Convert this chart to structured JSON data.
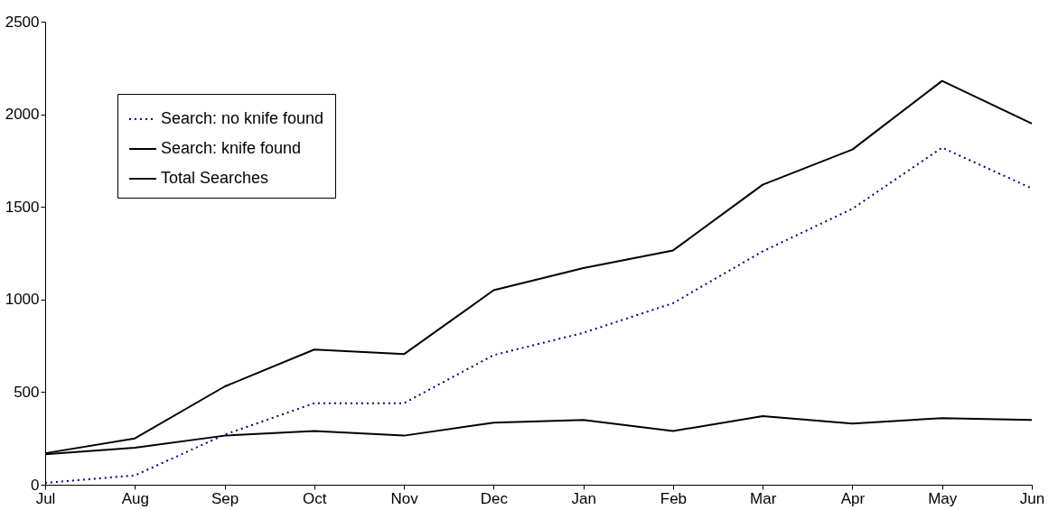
{
  "chart_data": {
    "type": "line",
    "categories": [
      "Jul",
      "Aug",
      "Sep",
      "Oct",
      "Nov",
      "Dec",
      "Jan",
      "Feb",
      "Mar",
      "Apr",
      "May",
      "Jun"
    ],
    "series": [
      {
        "name": "Search: no knife found",
        "color": "#000080",
        "line_style": "dotted",
        "values": [
          10,
          50,
          270,
          440,
          440,
          700,
          820,
          980,
          1260,
          1490,
          1820,
          1600
        ]
      },
      {
        "name": "Search: knife found",
        "color": "#000000",
        "line_style": "solid",
        "values": [
          165,
          200,
          265,
          290,
          265,
          335,
          350,
          290,
          370,
          330,
          360,
          350
        ]
      },
      {
        "name": "Total Searches",
        "color": "#000000",
        "line_style": "solid",
        "values": [
          170,
          250,
          530,
          730,
          705,
          1050,
          1170,
          1265,
          1620,
          1810,
          2180,
          1950
        ]
      }
    ],
    "ylim": [
      0,
      2500
    ],
    "yticks": [
      0,
      500,
      1000,
      1500,
      2000,
      2500
    ],
    "grid": false,
    "legend": "top left",
    "marker": "none"
  }
}
